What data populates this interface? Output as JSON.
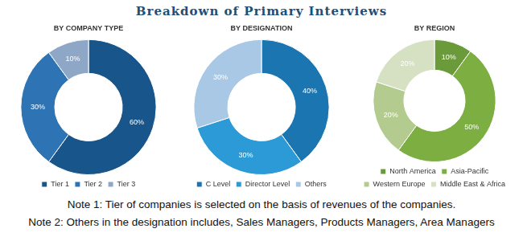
{
  "title": "Breakdown of Primary Interviews",
  "chart_data": [
    {
      "type": "doughnut",
      "title": "BY COMPANY TYPE",
      "categories": [
        "Tier 1",
        "Tier 2",
        "Tier 3"
      ],
      "values": [
        60,
        30,
        10
      ],
      "value_labels": [
        "60%",
        "30%",
        "10%"
      ],
      "colors": [
        "#18558a",
        "#2e74b5",
        "#8fa7c7"
      ],
      "data_labels": true,
      "legend": "bottom"
    },
    {
      "type": "doughnut",
      "title": "BY DESIGNATION",
      "categories": [
        "C Level",
        "Director Level",
        "Others"
      ],
      "values": [
        40,
        30,
        30
      ],
      "value_labels": [
        "40%",
        "30%",
        "30%"
      ],
      "colors": [
        "#1b75b1",
        "#2b9ad6",
        "#a9c8e6"
      ],
      "data_labels": true,
      "legend": "bottom"
    },
    {
      "type": "doughnut",
      "title": "BY REGION",
      "categories": [
        "North America",
        "Asia-Pacific",
        "Western Europe",
        "Middle East & Africa"
      ],
      "values": [
        10,
        50,
        20,
        20
      ],
      "value_labels": [
        "10%",
        "50%",
        "20%",
        "20%"
      ],
      "colors": [
        "#6a9a3a",
        "#7cae42",
        "#b4cb8f",
        "#d6e0c2"
      ],
      "data_labels": true,
      "legend": "bottom"
    }
  ],
  "notes": [
    "Note 1: Tier of companies is selected on the basis of revenues of the companies.",
    "Note 2: Others in the designation includes, Sales Managers, Products Managers, Area Managers"
  ]
}
